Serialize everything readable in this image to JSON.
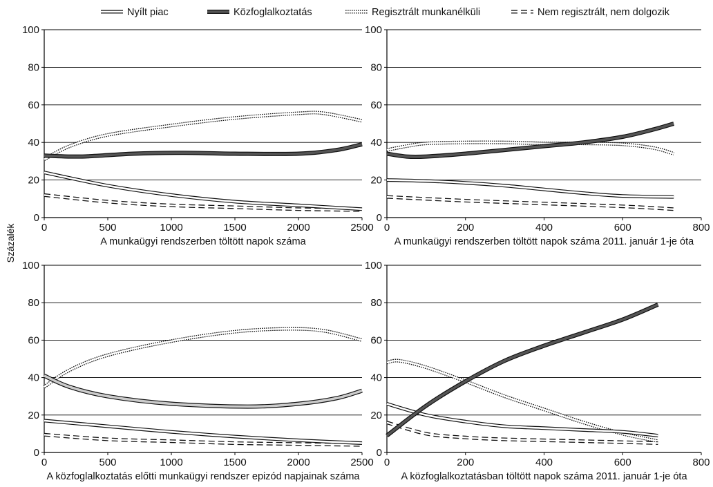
{
  "legend": [
    {
      "name": "Nyílt piac",
      "style": "open"
    },
    {
      "name": "Közfoglalkoztatás",
      "style": "dark"
    },
    {
      "name": "Regisztrált munkanélküli",
      "style": "dotted"
    },
    {
      "name": "Nem regisztrált, nem dolgozik",
      "style": "dashed"
    }
  ],
  "ylabel": "Százalék",
  "colors": {
    "dark_fill": "#555555",
    "light_fill": "#cccccc",
    "axis": "#000000",
    "grid": "#000000"
  },
  "chart_data": [
    {
      "type": "line",
      "xlabel": "A munkaügyi rendszerben töltött napok száma",
      "xlim": [
        0,
        2500
      ],
      "xticks": [
        0,
        500,
        1000,
        1500,
        2000,
        2500
      ],
      "ylim": [
        0,
        100
      ],
      "yticks": [
        0,
        20,
        40,
        60,
        80,
        100
      ],
      "grid": true,
      "series": [
        {
          "name": "Nyílt piac",
          "x": [
            0,
            500,
            1000,
            1500,
            2000,
            2500
          ],
          "values": [
            24,
            17,
            12,
            8.5,
            6.5,
            4.5
          ]
        },
        {
          "name": "Közfoglalkoztatás",
          "x": [
            0,
            300,
            700,
            1100,
            1500,
            2000,
            2300,
            2500
          ],
          "values": [
            33,
            32.5,
            34,
            34.5,
            34,
            34,
            36,
            39
          ]
        },
        {
          "name": "Regisztrált munkanélküli",
          "x": [
            0,
            200,
            500,
            1000,
            1500,
            2000,
            2200,
            2500
          ],
          "values": [
            31,
            38,
            44,
            49,
            53,
            55.5,
            55.5,
            51.5
          ]
        },
        {
          "name": "Nem regisztrált, nem dolgozik",
          "x": [
            0,
            500,
            1000,
            1500,
            2000,
            2500
          ],
          "values": [
            12,
            8.5,
            6.5,
            5.5,
            4.5,
            4
          ]
        }
      ]
    },
    {
      "type": "line",
      "xlabel": "A munkaügyi rendszerben töltött napok száma 2011. január 1-je óta",
      "xlim": [
        0,
        800
      ],
      "xticks": [
        0,
        200,
        400,
        600,
        800
      ],
      "ylim": [
        0,
        100
      ],
      "yticks": [
        0,
        20,
        40,
        60,
        80,
        100
      ],
      "grid": true,
      "series": [
        {
          "name": "Nyílt piac",
          "x": [
            0,
            100,
            200,
            300,
            400,
            500,
            600,
            730
          ],
          "values": [
            20,
            19.5,
            18.5,
            17,
            15,
            13,
            11.5,
            11
          ]
        },
        {
          "name": "Közfoglalkoztatás",
          "x": [
            0,
            50,
            100,
            200,
            300,
            400,
            500,
            600,
            680,
            730
          ],
          "values": [
            34,
            32.5,
            32.5,
            34,
            36,
            38,
            40,
            43,
            47,
            50
          ]
        },
        {
          "name": "Regisztrált munkanélküli",
          "x": [
            0,
            50,
            100,
            200,
            300,
            400,
            500,
            600,
            680,
            730
          ],
          "values": [
            36,
            38,
            39.5,
            40,
            40,
            39.5,
            39.5,
            39,
            37,
            34
          ]
        },
        {
          "name": "Nem regisztrált, nem dolgozik",
          "x": [
            0,
            200,
            400,
            600,
            730
          ],
          "values": [
            11,
            9,
            7.5,
            6,
            4.5
          ]
        }
      ]
    },
    {
      "type": "line",
      "xlabel": "A közfoglalkoztatás előtti munkaügyi rendszer epizód napjainak száma",
      "xlim": [
        0,
        2500
      ],
      "xticks": [
        0,
        500,
        1000,
        1500,
        2000,
        2500
      ],
      "ylim": [
        0,
        100
      ],
      "yticks": [
        0,
        20,
        40,
        60,
        80,
        100
      ],
      "grid": true,
      "series": [
        {
          "name": "Nyílt piac",
          "x": [
            0,
            500,
            1000,
            1500,
            2000,
            2500
          ],
          "values": [
            17,
            14,
            11,
            8.5,
            6.5,
            5
          ]
        },
        {
          "name": "Közfoglalkoztatás",
          "x": [
            0,
            200,
            500,
            1000,
            1600,
            2000,
            2300,
            2500
          ],
          "values": [
            41,
            35,
            30,
            26,
            24.5,
            26,
            29,
            33
          ]
        },
        {
          "name": "Regisztrált munkanélküli",
          "x": [
            0,
            200,
            500,
            1000,
            1500,
            1900,
            2200,
            2500
          ],
          "values": [
            35,
            44,
            52,
            59.5,
            64.5,
            66,
            65,
            60
          ]
        },
        {
          "name": "Nem regisztrált, nem dolgozik",
          "x": [
            0,
            500,
            1000,
            1500,
            2000,
            2500
          ],
          "values": [
            9.5,
            7,
            6,
            5,
            4.5,
            4
          ]
        }
      ]
    },
    {
      "type": "line",
      "xlabel": "A közfoglalkoztatásban töltött napok száma 2011. január 1-je óta",
      "xlim": [
        0,
        800
      ],
      "xticks": [
        0,
        200,
        400,
        600,
        800
      ],
      "ylim": [
        0,
        100
      ],
      "yticks": [
        0,
        20,
        40,
        60,
        80,
        100
      ],
      "grid": true,
      "series": [
        {
          "name": "Nyílt piac",
          "x": [
            0,
            100,
            200,
            300,
            400,
            500,
            600,
            690
          ],
          "values": [
            26,
            20,
            16.5,
            14,
            13,
            12,
            11,
            9
          ]
        },
        {
          "name": "Közfoglalkoztatás",
          "x": [
            0,
            100,
            200,
            300,
            400,
            500,
            600,
            690
          ],
          "values": [
            9,
            25,
            38,
            49,
            57,
            64,
            71,
            79
          ]
        },
        {
          "name": "Regisztrált munkanélküli",
          "x": [
            0,
            30,
            100,
            200,
            300,
            400,
            500,
            600,
            690
          ],
          "values": [
            48,
            49,
            45.5,
            38,
            30,
            23,
            16,
            10,
            6
          ]
        },
        {
          "name": "Nem regisztrált, nem dolgozik",
          "x": [
            0,
            100,
            200,
            300,
            400,
            500,
            600,
            690
          ],
          "values": [
            16,
            10,
            8,
            7,
            6.5,
            6,
            5.5,
            5
          ]
        }
      ]
    }
  ]
}
